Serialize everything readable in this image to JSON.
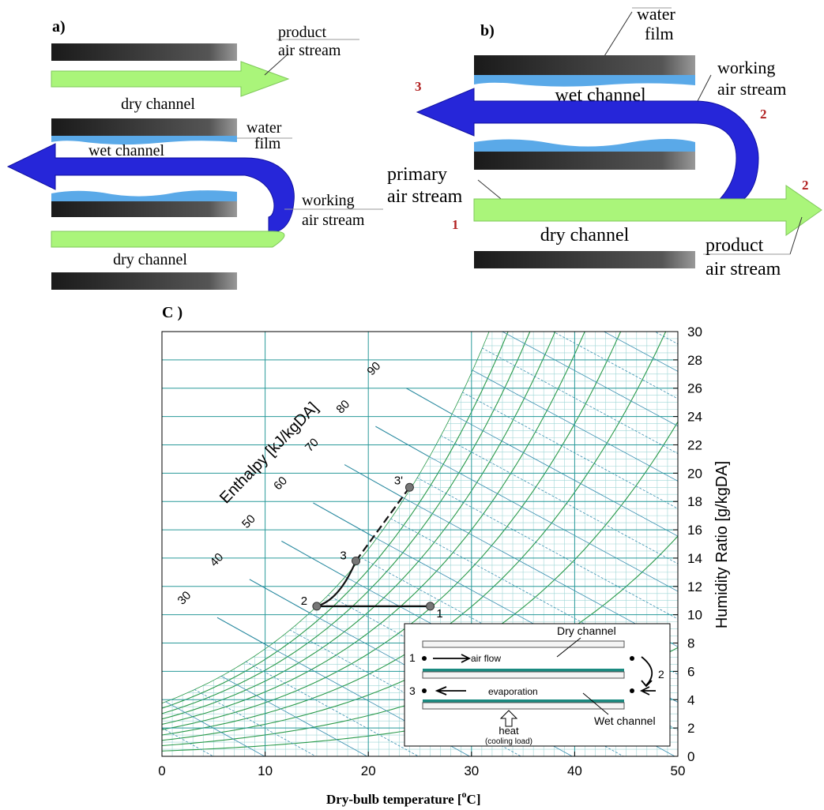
{
  "panel_a": {
    "label": "a)",
    "product_air_stream": [
      "product",
      "air stream"
    ],
    "dry_channel_top": "dry channel",
    "wet_channel": "wet channel",
    "water_film": [
      "water",
      "film"
    ],
    "working_air_stream": [
      "working",
      "air stream"
    ],
    "dry_channel_bottom": "dry channel"
  },
  "panel_b": {
    "label": "b)",
    "water_film": [
      "water",
      "film"
    ],
    "working_air_stream": [
      "working",
      "air stream"
    ],
    "wet_channel": "wet channel",
    "point_3": "3",
    "point_2_top": "2",
    "primary_air_stream": [
      "primary",
      "air stream"
    ],
    "point_1": "1",
    "dry_channel": "dry channel",
    "point_2_right": "2",
    "product_air_stream": [
      "product",
      "air stream"
    ]
  },
  "panel_c": {
    "label": "C )",
    "x_label": [
      "Dry-bulb temperature [",
      "o",
      "C]"
    ],
    "y_label": "Humidity Ratio [g/kgDA]",
    "enthalpy_label": "Enthalpy [kJ/kgDA]",
    "xlim": [
      0,
      50
    ],
    "xticks": [
      0,
      10,
      20,
      30,
      40,
      50
    ],
    "ylim": [
      0,
      30
    ],
    "yticks": [
      0,
      2,
      4,
      6,
      8,
      10,
      12,
      14,
      16,
      18,
      20,
      22,
      24,
      26,
      28,
      30
    ],
    "enthalpy_ticks": [
      30,
      40,
      50,
      60,
      70,
      80,
      90
    ],
    "points": [
      {
        "label": "1",
        "x": 26,
        "y": 10.6
      },
      {
        "label": "2",
        "x": 15,
        "y": 10.6
      },
      {
        "label": "3",
        "x": 18.8,
        "y": 13.8
      },
      {
        "label": "3'",
        "x": 24,
        "y": 19
      }
    ],
    "inset": {
      "dry_channel": "Dry channel",
      "point_1": "1",
      "air_flow": "air flow",
      "point_2": "2",
      "point_3": "3",
      "evaporation": "evaporation",
      "wet_channel": "Wet channel",
      "heat": "heat",
      "cooling_load": "(cooling load)"
    }
  }
}
